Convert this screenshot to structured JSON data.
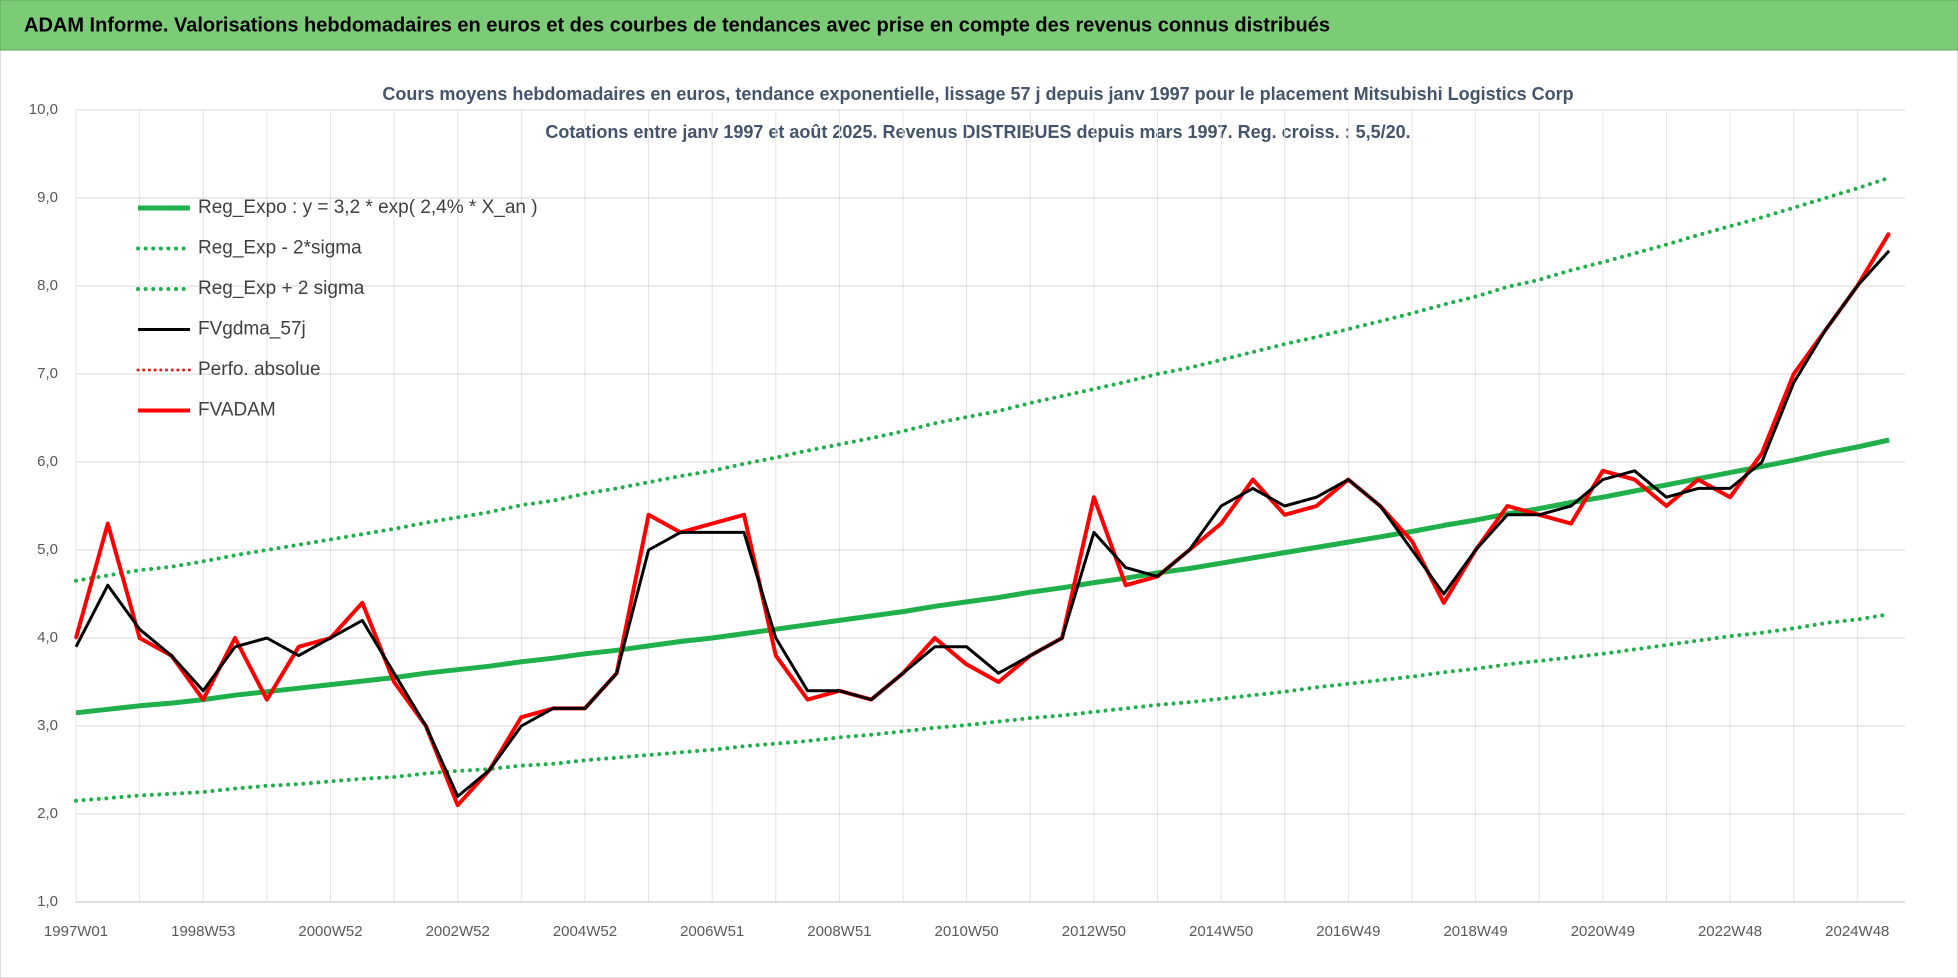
{
  "header": {
    "title": "ADAM Informe. Valorisations hebdomadaires en euros et des courbes de tendances avec prise en compte des revenus connus distribués"
  },
  "chart_data": {
    "type": "line",
    "title": "Cours moyens hebdomadaires en euros, tendance exponentielle, lissage 57 j depuis janv 1997 pour le placement Mitsubishi Logistics Corp",
    "subtitle": "Cotations entre janv 1997 et août 2025.  Revenus DISTRIBUES depuis mars 1997. Reg. croiss. : 5,5/20.",
    "categories": [
      "1997W01",
      null,
      null,
      null,
      "1998W53",
      null,
      null,
      null,
      "2000W52",
      null,
      null,
      null,
      "2002W52",
      null,
      null,
      null,
      "2004W52",
      null,
      null,
      null,
      "2006W51",
      null,
      null,
      null,
      "2008W51",
      null,
      null,
      null,
      "2010W50",
      null,
      null,
      null,
      "2012W50",
      null,
      null,
      null,
      "2014W50",
      null,
      null,
      null,
      "2016W49",
      null,
      null,
      null,
      "2018W49",
      null,
      null,
      null,
      "2020W49",
      null,
      null,
      null,
      "2022W48",
      null,
      null,
      null,
      "2024W48",
      null
    ],
    "ylim": [
      1,
      10
    ],
    "yticks": [
      {
        "value": 1,
        "label": "1,0"
      },
      {
        "value": 2,
        "label": "2,0"
      },
      {
        "value": 3,
        "label": "3,0"
      },
      {
        "value": 4,
        "label": "4,0"
      },
      {
        "value": 5,
        "label": "5,0"
      },
      {
        "value": 6,
        "label": "6,0"
      },
      {
        "value": 7,
        "label": "7,0"
      },
      {
        "value": 8,
        "label": "8,0"
      },
      {
        "value": 9,
        "label": "9,0"
      },
      {
        "value": 10,
        "label": "10,0"
      }
    ],
    "grid": true,
    "legend": "top-left",
    "series": [
      {
        "name": "Reg_Expo : y = 3,2 * exp( 2,4% *  X_an )",
        "color": "#1fb04b",
        "style": "solid",
        "width": 5,
        "values": [
          3.15,
          3.19,
          3.23,
          3.26,
          3.3,
          3.35,
          3.39,
          3.43,
          3.47,
          3.51,
          3.55,
          3.6,
          3.64,
          3.68,
          3.73,
          3.77,
          3.82,
          3.86,
          3.91,
          3.96,
          4.0,
          4.05,
          4.1,
          4.15,
          4.2,
          4.25,
          4.3,
          4.36,
          4.41,
          4.46,
          4.52,
          4.57,
          4.63,
          4.68,
          4.74,
          4.79,
          4.85,
          4.91,
          4.97,
          5.03,
          5.09,
          5.15,
          5.21,
          5.28,
          5.34,
          5.41,
          5.47,
          5.54,
          5.6,
          5.67,
          5.74,
          5.81,
          5.88,
          5.95,
          6.02,
          6.1,
          6.17,
          6.25
        ]
      },
      {
        "name": "Reg_Exp - 2*sigma",
        "color": "#1fb04b",
        "style": "dotted",
        "width": 4,
        "values": [
          2.15,
          2.18,
          2.21,
          2.23,
          2.25,
          2.29,
          2.32,
          2.34,
          2.37,
          2.4,
          2.42,
          2.46,
          2.49,
          2.51,
          2.55,
          2.57,
          2.61,
          2.64,
          2.67,
          2.7,
          2.73,
          2.77,
          2.8,
          2.83,
          2.87,
          2.9,
          2.94,
          2.98,
          3.01,
          3.05,
          3.09,
          3.12,
          3.16,
          3.2,
          3.24,
          3.27,
          3.31,
          3.35,
          3.39,
          3.44,
          3.48,
          3.52,
          3.56,
          3.61,
          3.65,
          3.7,
          3.74,
          3.78,
          3.82,
          3.87,
          3.92,
          3.97,
          4.02,
          4.06,
          4.11,
          4.17,
          4.21,
          4.27
        ]
      },
      {
        "name": "Reg_Exp + 2 sigma",
        "color": "#1fb04b",
        "style": "dotted",
        "width": 4,
        "values": [
          4.65,
          4.71,
          4.77,
          4.81,
          4.87,
          4.94,
          5.0,
          5.06,
          5.12,
          5.18,
          5.24,
          5.31,
          5.37,
          5.43,
          5.51,
          5.56,
          5.64,
          5.7,
          5.77,
          5.84,
          5.9,
          5.98,
          6.05,
          6.13,
          6.2,
          6.27,
          6.35,
          6.44,
          6.51,
          6.58,
          6.67,
          6.75,
          6.83,
          6.91,
          7.0,
          7.07,
          7.16,
          7.25,
          7.34,
          7.42,
          7.51,
          7.6,
          7.69,
          7.79,
          7.88,
          7.99,
          8.07,
          8.18,
          8.27,
          8.37,
          8.47,
          8.58,
          8.68,
          8.78,
          8.89,
          9.0,
          9.11,
          9.23
        ]
      },
      {
        "name": "FVgdma_57j",
        "color": "#000000",
        "style": "solid",
        "width": 3,
        "values": [
          3.9,
          4.6,
          4.1,
          3.8,
          3.4,
          3.9,
          4.0,
          3.8,
          4.0,
          4.2,
          3.6,
          3.0,
          2.2,
          2.5,
          3.0,
          3.2,
          3.2,
          3.6,
          5.0,
          5.2,
          5.2,
          5.2,
          4.0,
          3.4,
          3.4,
          3.3,
          3.6,
          3.9,
          3.9,
          3.6,
          3.8,
          4.0,
          5.2,
          4.8,
          4.7,
          5.0,
          5.5,
          5.7,
          5.5,
          5.6,
          5.8,
          5.5,
          5.0,
          4.5,
          5.0,
          5.4,
          5.4,
          5.5,
          5.8,
          5.9,
          5.6,
          5.7,
          5.7,
          6.0,
          6.9,
          7.5,
          8.0,
          8.4
        ]
      },
      {
        "name": "Perfo. absolue",
        "color": "#e31a1c",
        "style": "dotted",
        "width": 3,
        "values": [
          4.0,
          5.3,
          4.0,
          3.8,
          3.3,
          4.0,
          3.3,
          3.9,
          4.0,
          4.4,
          3.5,
          3.0,
          2.1,
          2.5,
          3.1,
          3.2,
          3.2,
          3.6,
          5.4,
          5.2,
          5.3,
          5.4,
          3.8,
          3.3,
          3.4,
          3.3,
          3.6,
          4.0,
          3.7,
          3.5,
          3.8,
          4.0,
          5.6,
          4.6,
          4.7,
          5.0,
          5.3,
          5.8,
          5.4,
          5.5,
          5.8,
          5.5,
          5.1,
          4.4,
          5.0,
          5.5,
          5.4,
          5.3,
          5.9,
          5.8,
          5.5,
          5.8,
          5.6,
          6.1,
          7.0,
          7.5,
          8.0,
          8.6
        ]
      },
      {
        "name": "FVADAM",
        "color": "#ff0000",
        "style": "solid",
        "width": 4,
        "values": [
          4.0,
          5.3,
          4.0,
          3.8,
          3.3,
          4.0,
          3.3,
          3.9,
          4.0,
          4.4,
          3.5,
          3.0,
          2.1,
          2.5,
          3.1,
          3.2,
          3.2,
          3.6,
          5.4,
          5.2,
          5.3,
          5.4,
          3.8,
          3.3,
          3.4,
          3.3,
          3.6,
          4.0,
          3.7,
          3.5,
          3.8,
          4.0,
          5.6,
          4.6,
          4.7,
          5.0,
          5.3,
          5.8,
          5.4,
          5.5,
          5.8,
          5.5,
          5.1,
          4.4,
          5.0,
          5.5,
          5.4,
          5.3,
          5.9,
          5.8,
          5.5,
          5.8,
          5.6,
          6.1,
          7.0,
          7.5,
          8.0,
          8.6
        ]
      }
    ]
  }
}
